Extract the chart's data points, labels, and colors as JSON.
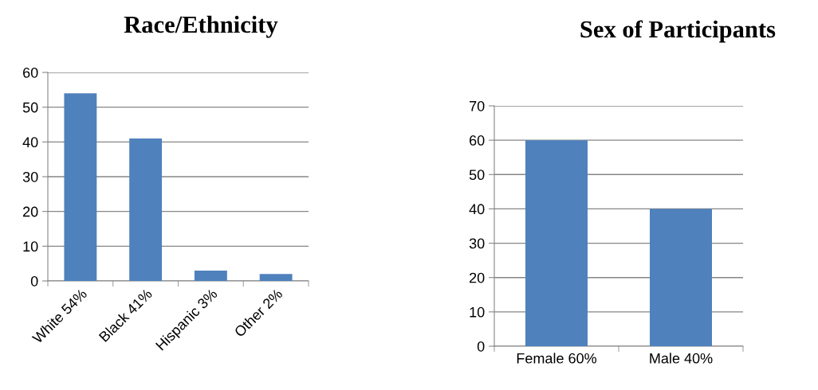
{
  "chart_data": [
    {
      "type": "bar",
      "title": "Race/Ethnicity",
      "categories": [
        "White 54%",
        "Black 41%",
        "Hispanic 3%",
        "Other 2%"
      ],
      "values": [
        54,
        41,
        3,
        2
      ],
      "color": "#4f81bd",
      "ylim": [
        0,
        60
      ],
      "yticks": [
        0,
        10,
        20,
        30,
        40,
        50,
        60
      ],
      "grid": "y",
      "legend": false
    },
    {
      "type": "bar",
      "title": "Sex of Participants",
      "categories": [
        "Female 60%",
        "Male 40%"
      ],
      "values": [
        60,
        40
      ],
      "color": "#4f81bd",
      "ylim": [
        0,
        70
      ],
      "yticks": [
        0,
        10,
        20,
        30,
        40,
        50,
        60,
        70
      ],
      "grid": "y",
      "legend": false
    }
  ]
}
